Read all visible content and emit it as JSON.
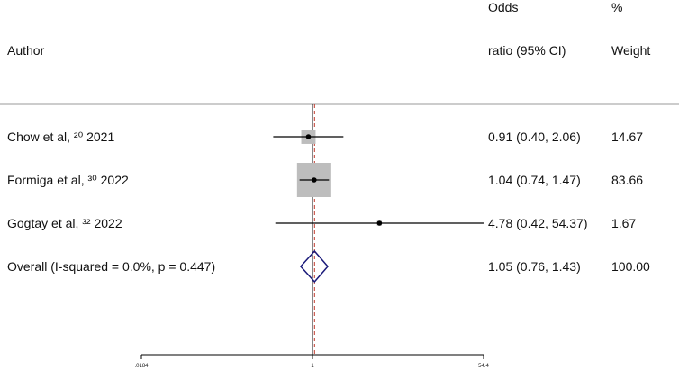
{
  "header": {
    "author": "Author",
    "or_line1": "Odds",
    "or_line2": "ratio (95% CI)",
    "weight_line1": "%",
    "weight_line2": "Weight"
  },
  "chart_data": {
    "type": "forest",
    "scale": "log",
    "xlim": [
      0.0184,
      54.4
    ],
    "xticks": [
      {
        "value": 0.0184,
        "label": ".0184"
      },
      {
        "value": 1,
        "label": "1"
      },
      {
        "value": 54.4,
        "label": "54.4"
      }
    ],
    "null_line": 1,
    "overall_line": 1.05,
    "studies": [
      {
        "label": "Chow et al, ²⁰ 2021",
        "or": 0.91,
        "lo": 0.4,
        "hi": 2.06,
        "ci_text": "0.91 (0.40, 2.06)",
        "weight": "14.67",
        "w": 14.67
      },
      {
        "label": "Formiga et al, ³⁰ 2022",
        "or": 1.04,
        "lo": 0.74,
        "hi": 1.47,
        "ci_text": "1.04 (0.74, 1.47)",
        "weight": "83.66",
        "w": 83.66
      },
      {
        "label": "Gogtay et al, ³² 2022",
        "or": 4.78,
        "lo": 0.42,
        "hi": 54.37,
        "ci_text": "4.78 (0.42, 54.37)",
        "weight": "1.67",
        "w": 1.67
      }
    ],
    "overall": {
      "label": "Overall  (I-squared = 0.0%, p = 0.447)",
      "or": 1.05,
      "lo": 0.76,
      "hi": 1.43,
      "ci_text": "1.05 (0.76, 1.43)",
      "weight": "100.00"
    },
    "colors": {
      "box": "#bdbdbd",
      "diamond": "#1a1a7a",
      "overall_line": "#c0392b",
      "line": "#000000"
    }
  }
}
